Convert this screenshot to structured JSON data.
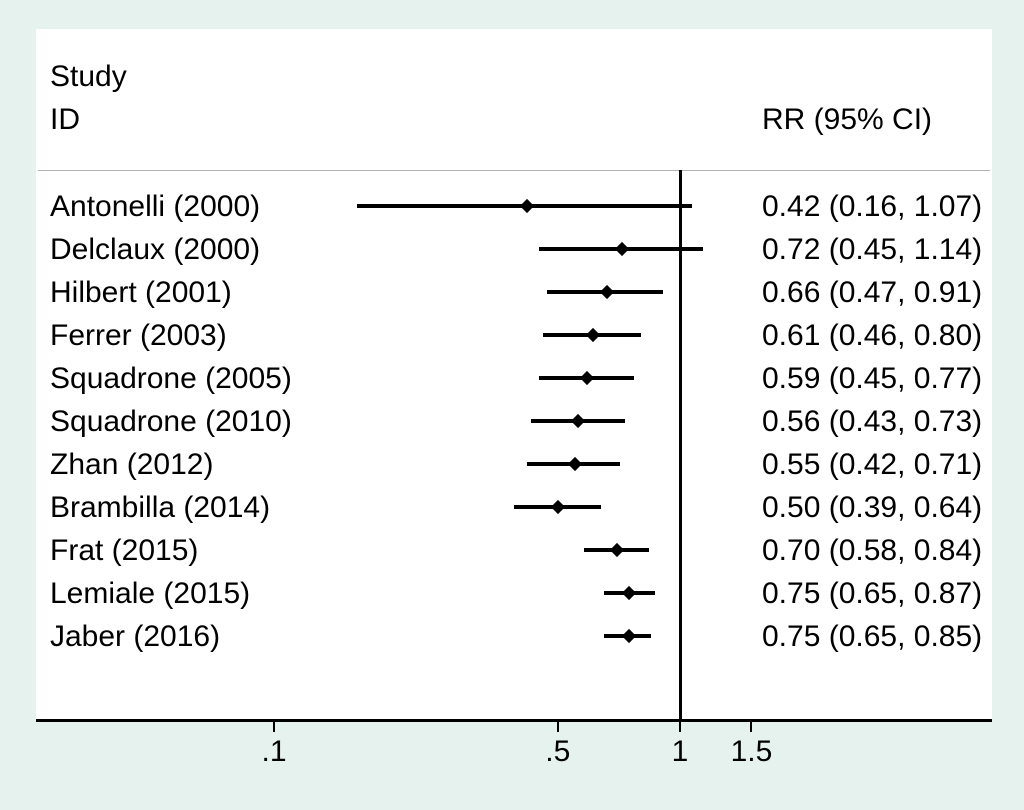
{
  "figure": {
    "header": {
      "col_left_line1": "Study",
      "col_left_line2": "ID",
      "col_right": "RR (95% CI)"
    }
  },
  "chart_data": {
    "type": "forest",
    "effect_measure": "RR",
    "x_scale": "log10",
    "x_axis": {
      "tick_labels": [
        ".1",
        ".5",
        "1",
        "1.5"
      ],
      "tick_values": [
        0.1,
        0.5,
        1,
        1.5
      ]
    },
    "reference_line_value": 1,
    "legend_position": "none",
    "grid": false,
    "studies": [
      {
        "label": "Antonelli (2000)",
        "rr": 0.42,
        "ci_low": 0.16,
        "ci_high": 1.07,
        "rr_text": "0.42 (0.16, 1.07)"
      },
      {
        "label": "Delclaux (2000)",
        "rr": 0.72,
        "ci_low": 0.45,
        "ci_high": 1.14,
        "rr_text": "0.72 (0.45, 1.14)"
      },
      {
        "label": "Hilbert (2001)",
        "rr": 0.66,
        "ci_low": 0.47,
        "ci_high": 0.91,
        "rr_text": "0.66 (0.47, 0.91)"
      },
      {
        "label": "Ferrer (2003)",
        "rr": 0.61,
        "ci_low": 0.46,
        "ci_high": 0.8,
        "rr_text": "0.61 (0.46, 0.80)"
      },
      {
        "label": "Squadrone (2005)",
        "rr": 0.59,
        "ci_low": 0.45,
        "ci_high": 0.77,
        "rr_text": "0.59 (0.45, 0.77)"
      },
      {
        "label": "Squadrone (2010)",
        "rr": 0.56,
        "ci_low": 0.43,
        "ci_high": 0.73,
        "rr_text": "0.56 (0.43, 0.73)"
      },
      {
        "label": "Zhan (2012)",
        "rr": 0.55,
        "ci_low": 0.42,
        "ci_high": 0.71,
        "rr_text": "0.55 (0.42, 0.71)"
      },
      {
        "label": "Brambilla (2014)",
        "rr": 0.5,
        "ci_low": 0.39,
        "ci_high": 0.64,
        "rr_text": "0.50 (0.39, 0.64)"
      },
      {
        "label": "Frat (2015)",
        "rr": 0.7,
        "ci_low": 0.58,
        "ci_high": 0.84,
        "rr_text": "0.70 (0.58, 0.84)"
      },
      {
        "label": "Lemiale (2015)",
        "rr": 0.75,
        "ci_low": 0.65,
        "ci_high": 0.87,
        "rr_text": "0.75 (0.65, 0.87)"
      },
      {
        "label": "Jaber (2016)",
        "rr": 0.75,
        "ci_low": 0.65,
        "ci_high": 0.85,
        "rr_text": "0.75 (0.65, 0.85)"
      }
    ]
  },
  "colors": {
    "page_background": "#e6f2ee",
    "plot_background": "#ffffff",
    "ink": "#000000",
    "separator": "#b3b3b3"
  }
}
